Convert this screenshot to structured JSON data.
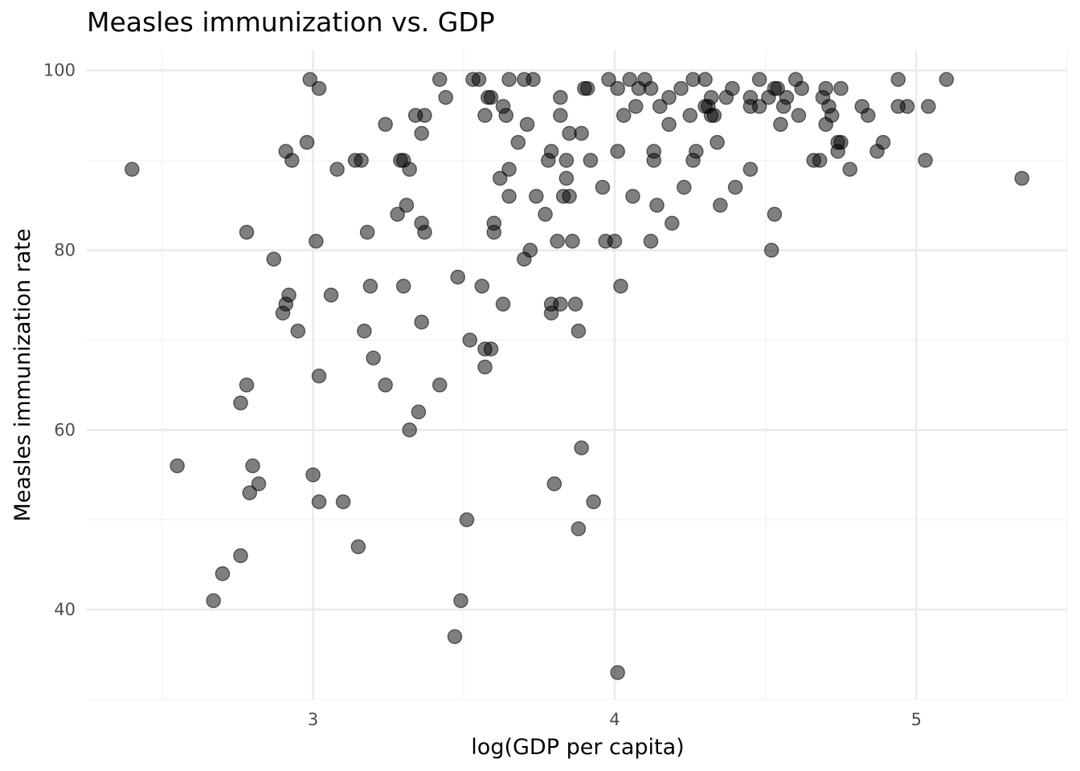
{
  "chart_data": {
    "type": "scatter",
    "title": "Measles immunization vs. GDP",
    "xlabel": "log(GDP per capita)",
    "ylabel": "Measles immunization rate",
    "xlim": [
      2.25,
      5.5
    ],
    "ylim": [
      30,
      102.3
    ],
    "x_ticks": [
      3,
      4,
      5
    ],
    "x_tick_labels": [
      "3",
      "4",
      "5"
    ],
    "y_ticks": [
      40,
      60,
      80,
      100
    ],
    "y_tick_labels": [
      "40",
      "60",
      "80",
      "100"
    ],
    "grid": true,
    "legend": "none",
    "point_color": "#000000",
    "point_alpha": 0.5,
    "series": [
      {
        "points": [
          [
            2.4,
            89
          ],
          [
            2.55,
            56
          ],
          [
            2.67,
            41
          ],
          [
            2.7,
            44
          ],
          [
            2.76,
            46
          ],
          [
            2.76,
            63
          ],
          [
            2.78,
            82
          ],
          [
            2.78,
            65
          ],
          [
            2.79,
            53
          ],
          [
            2.8,
            56
          ],
          [
            2.82,
            54
          ],
          [
            2.87,
            79
          ],
          [
            2.9,
            73
          ],
          [
            2.91,
            91
          ],
          [
            2.91,
            74
          ],
          [
            2.92,
            75
          ],
          [
            2.93,
            90
          ],
          [
            2.95,
            71
          ],
          [
            2.98,
            92
          ],
          [
            2.99,
            99
          ],
          [
            3.0,
            55
          ],
          [
            3.01,
            81
          ],
          [
            3.02,
            98
          ],
          [
            3.02,
            66
          ],
          [
            3.02,
            52
          ],
          [
            3.06,
            75
          ],
          [
            3.08,
            89
          ],
          [
            3.1,
            52
          ],
          [
            3.14,
            90
          ],
          [
            3.15,
            47
          ],
          [
            3.16,
            90
          ],
          [
            3.17,
            71
          ],
          [
            3.18,
            82
          ],
          [
            3.19,
            76
          ],
          [
            3.2,
            68
          ],
          [
            3.24,
            94
          ],
          [
            3.24,
            65
          ],
          [
            3.28,
            84
          ],
          [
            3.29,
            90
          ],
          [
            3.3,
            90
          ],
          [
            3.3,
            76
          ],
          [
            3.31,
            85
          ],
          [
            3.32,
            89
          ],
          [
            3.32,
            60
          ],
          [
            3.34,
            95
          ],
          [
            3.35,
            62
          ],
          [
            3.36,
            93
          ],
          [
            3.36,
            83
          ],
          [
            3.36,
            72
          ],
          [
            3.37,
            95
          ],
          [
            3.37,
            82
          ],
          [
            3.42,
            99
          ],
          [
            3.42,
            65
          ],
          [
            3.44,
            97
          ],
          [
            3.47,
            37
          ],
          [
            3.48,
            77
          ],
          [
            3.49,
            41
          ],
          [
            3.51,
            50
          ],
          [
            3.52,
            70
          ],
          [
            3.53,
            99
          ],
          [
            3.55,
            99
          ],
          [
            3.56,
            76
          ],
          [
            3.57,
            95
          ],
          [
            3.57,
            69
          ],
          [
            3.57,
            67
          ],
          [
            3.58,
            97
          ],
          [
            3.59,
            97
          ],
          [
            3.59,
            69
          ],
          [
            3.6,
            83
          ],
          [
            3.6,
            82
          ],
          [
            3.62,
            88
          ],
          [
            3.63,
            96
          ],
          [
            3.63,
            74
          ],
          [
            3.64,
            95
          ],
          [
            3.65,
            89
          ],
          [
            3.65,
            86
          ],
          [
            3.65,
            99
          ],
          [
            3.68,
            92
          ],
          [
            3.7,
            99
          ],
          [
            3.7,
            79
          ],
          [
            3.71,
            94
          ],
          [
            3.72,
            80
          ],
          [
            3.73,
            99
          ],
          [
            3.74,
            86
          ],
          [
            3.77,
            84
          ],
          [
            3.78,
            90
          ],
          [
            3.79,
            91
          ],
          [
            3.79,
            74
          ],
          [
            3.79,
            73
          ],
          [
            3.8,
            54
          ],
          [
            3.81,
            81
          ],
          [
            3.82,
            97
          ],
          [
            3.82,
            74
          ],
          [
            3.82,
            95
          ],
          [
            3.83,
            86
          ],
          [
            3.84,
            88
          ],
          [
            3.84,
            90
          ],
          [
            3.85,
            86
          ],
          [
            3.85,
            93
          ],
          [
            3.86,
            81
          ],
          [
            3.87,
            74
          ],
          [
            3.88,
            71
          ],
          [
            3.88,
            49
          ],
          [
            3.89,
            58
          ],
          [
            3.89,
            93
          ],
          [
            3.9,
            98
          ],
          [
            3.91,
            98
          ],
          [
            3.92,
            90
          ],
          [
            3.93,
            52
          ],
          [
            3.96,
            87
          ],
          [
            3.97,
            81
          ],
          [
            3.98,
            99
          ],
          [
            4.0,
            81
          ],
          [
            4.01,
            91
          ],
          [
            4.01,
            98
          ],
          [
            4.01,
            33
          ],
          [
            4.02,
            76
          ],
          [
            4.03,
            95
          ],
          [
            4.05,
            99
          ],
          [
            4.06,
            86
          ],
          [
            4.07,
            96
          ],
          [
            4.08,
            98
          ],
          [
            4.1,
            99
          ],
          [
            4.12,
            81
          ],
          [
            4.12,
            98
          ],
          [
            4.13,
            91
          ],
          [
            4.13,
            90
          ],
          [
            4.14,
            85
          ],
          [
            4.15,
            96
          ],
          [
            4.18,
            94
          ],
          [
            4.18,
            97
          ],
          [
            4.19,
            83
          ],
          [
            4.22,
            98
          ],
          [
            4.23,
            87
          ],
          [
            4.25,
            95
          ],
          [
            4.26,
            99
          ],
          [
            4.26,
            90
          ],
          [
            4.27,
            91
          ],
          [
            4.3,
            99
          ],
          [
            4.3,
            96
          ],
          [
            4.31,
            96
          ],
          [
            4.32,
            95
          ],
          [
            4.32,
            97
          ],
          [
            4.33,
            95
          ],
          [
            4.34,
            92
          ],
          [
            4.35,
            85
          ],
          [
            4.37,
            97
          ],
          [
            4.39,
            98
          ],
          [
            4.4,
            87
          ],
          [
            4.45,
            89
          ],
          [
            4.45,
            97
          ],
          [
            4.45,
            96
          ],
          [
            4.48,
            99
          ],
          [
            4.48,
            96
          ],
          [
            4.51,
            97
          ],
          [
            4.52,
            80
          ],
          [
            4.53,
            84
          ],
          [
            4.53,
            98
          ],
          [
            4.54,
            98
          ],
          [
            4.55,
            94
          ],
          [
            4.56,
            96
          ],
          [
            4.57,
            97
          ],
          [
            4.6,
            99
          ],
          [
            4.61,
            95
          ],
          [
            4.62,
            98
          ],
          [
            4.66,
            90
          ],
          [
            4.68,
            90
          ],
          [
            4.69,
            97
          ],
          [
            4.7,
            98
          ],
          [
            4.7,
            94
          ],
          [
            4.71,
            96
          ],
          [
            4.72,
            95
          ],
          [
            4.74,
            91
          ],
          [
            4.74,
            92
          ],
          [
            4.75,
            92
          ],
          [
            4.75,
            98
          ],
          [
            4.78,
            89
          ],
          [
            4.82,
            96
          ],
          [
            4.84,
            95
          ],
          [
            4.87,
            91
          ],
          [
            4.89,
            92
          ],
          [
            4.94,
            99
          ],
          [
            4.94,
            96
          ],
          [
            4.97,
            96
          ],
          [
            5.03,
            90
          ],
          [
            5.04,
            96
          ],
          [
            5.1,
            99
          ],
          [
            5.35,
            88
          ]
        ]
      }
    ]
  }
}
